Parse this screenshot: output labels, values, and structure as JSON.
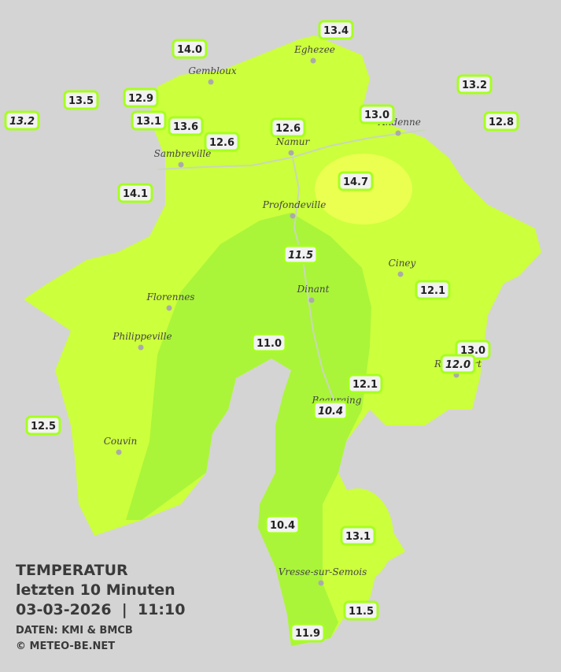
{
  "map": {
    "title": "TEMPERATUR",
    "subtitle": "letzten 10 Minuten",
    "datetime": "03-03-2026  |  11:10",
    "source": "DATEN: KMI & BMCB",
    "copyright": "© METEO-BE.NET",
    "towns": [
      "Eghezee",
      "Gembloux",
      "Andenne",
      "Namur",
      "Sambreville",
      "Profondeville",
      "Ciney",
      "Dinant",
      "Florennes",
      "Philippeville",
      "Beauraing",
      "Rochefort",
      "Couvin",
      "Vresse-sur-Semois"
    ],
    "stations": [
      "14.0",
      "13.4",
      "13.2",
      "13.5",
      "12.9",
      "13.2",
      "13.1",
      "13.6",
      "12.6",
      "13.0",
      "12.8",
      "12.6",
      "14.7",
      "14.1",
      "11.5",
      "12.1",
      "11.0",
      "13.0",
      "12.0",
      "12.1",
      "10.4",
      "12.5",
      "10.4",
      "13.1",
      "11.5",
      "11.9"
    ]
  }
}
